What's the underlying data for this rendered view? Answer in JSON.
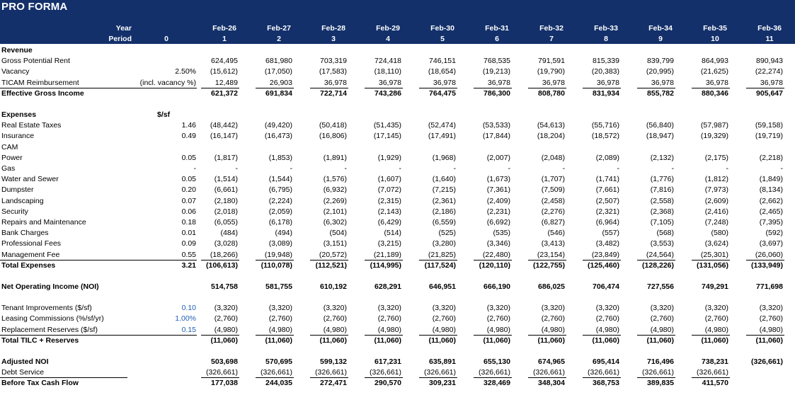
{
  "title": "PRO FORMA",
  "header": {
    "year_label": "Year",
    "period_label": "Period",
    "period0": "0",
    "years": [
      "Feb-26",
      "Feb-27",
      "Feb-28",
      "Feb-29",
      "Feb-30",
      "Feb-31",
      "Feb-32",
      "Feb-33",
      "Feb-34",
      "Feb-35",
      "Feb-36"
    ],
    "periods": [
      "1",
      "2",
      "3",
      "4",
      "5",
      "6",
      "7",
      "8",
      "9",
      "10",
      "11"
    ]
  },
  "rows": [
    {
      "label": "Revenue",
      "bold": true
    },
    {
      "label": "Gross Potential Rent",
      "vals": [
        "624,495",
        "681,980",
        "703,319",
        "724,418",
        "746,151",
        "768,535",
        "791,591",
        "815,339",
        "839,799",
        "864,993",
        "890,943"
      ]
    },
    {
      "label": "Vacancy",
      "a": "2.50%",
      "vals": [
        "(15,612)",
        "(17,050)",
        "(17,583)",
        "(18,110)",
        "(18,654)",
        "(19,213)",
        "(19,790)",
        "(20,383)",
        "(20,995)",
        "(21,625)",
        "(22,274)"
      ]
    },
    {
      "label": "TICAM Reimbursement",
      "a": "(incl. vacancy %)",
      "vals": [
        "12,489",
        "26,903",
        "36,978",
        "36,978",
        "36,978",
        "36,978",
        "36,978",
        "36,978",
        "36,978",
        "36,978",
        "36,978"
      ],
      "uline": true
    },
    {
      "label": "Effective Gross Income",
      "bold": true,
      "vals": [
        "621,372",
        "691,834",
        "722,714",
        "743,286",
        "764,475",
        "786,300",
        "808,780",
        "831,934",
        "855,782",
        "880,346",
        "905,647"
      ]
    },
    {
      "blank": true
    },
    {
      "label": "Expenses",
      "bold": true,
      "b": "$/sf"
    },
    {
      "label": "Real Estate Taxes",
      "a": "1.46",
      "vals": [
        "(48,442)",
        "(49,420)",
        "(50,418)",
        "(51,435)",
        "(52,474)",
        "(53,533)",
        "(54,613)",
        "(55,716)",
        "(56,840)",
        "(57,987)",
        "(59,158)"
      ]
    },
    {
      "label": "Insurance",
      "a": "0.49",
      "vals": [
        "(16,147)",
        "(16,473)",
        "(16,806)",
        "(17,145)",
        "(17,491)",
        "(17,844)",
        "(18,204)",
        "(18,572)",
        "(18,947)",
        "(19,329)",
        "(19,719)"
      ]
    },
    {
      "label": "CAM"
    },
    {
      "label": "Power",
      "a": "0.05",
      "vals": [
        "(1,817)",
        "(1,853)",
        "(1,891)",
        "(1,929)",
        "(1,968)",
        "(2,007)",
        "(2,048)",
        "(2,089)",
        "(2,132)",
        "(2,175)",
        "(2,218)"
      ]
    },
    {
      "label": "Gas",
      "a": "-",
      "vals": [
        "-",
        "-",
        "-",
        "-",
        "-",
        "-",
        "-",
        "-",
        "-",
        "-",
        "-"
      ]
    },
    {
      "label": "Water and Sewer",
      "a": "0.05",
      "vals": [
        "(1,514)",
        "(1,544)",
        "(1,576)",
        "(1,607)",
        "(1,640)",
        "(1,673)",
        "(1,707)",
        "(1,741)",
        "(1,776)",
        "(1,812)",
        "(1,849)"
      ]
    },
    {
      "label": "Dumpster",
      "a": "0.20",
      "vals": [
        "(6,661)",
        "(6,795)",
        "(6,932)",
        "(7,072)",
        "(7,215)",
        "(7,361)",
        "(7,509)",
        "(7,661)",
        "(7,816)",
        "(7,973)",
        "(8,134)"
      ]
    },
    {
      "label": "Landscaping",
      "a": "0.07",
      "vals": [
        "(2,180)",
        "(2,224)",
        "(2,269)",
        "(2,315)",
        "(2,361)",
        "(2,409)",
        "(2,458)",
        "(2,507)",
        "(2,558)",
        "(2,609)",
        "(2,662)"
      ]
    },
    {
      "label": "Security",
      "a": "0.06",
      "vals": [
        "(2,018)",
        "(2,059)",
        "(2,101)",
        "(2,143)",
        "(2,186)",
        "(2,231)",
        "(2,276)",
        "(2,321)",
        "(2,368)",
        "(2,416)",
        "(2,465)"
      ]
    },
    {
      "label": "Repairs and Maintenance",
      "a": "0.18",
      "vals": [
        "(6,055)",
        "(6,178)",
        "(6,302)",
        "(6,429)",
        "(6,559)",
        "(6,692)",
        "(6,827)",
        "(6,964)",
        "(7,105)",
        "(7,248)",
        "(7,395)"
      ]
    },
    {
      "label": "Bank Charges",
      "a": "0.01",
      "vals": [
        "(484)",
        "(494)",
        "(504)",
        "(514)",
        "(525)",
        "(535)",
        "(546)",
        "(557)",
        "(568)",
        "(580)",
        "(592)"
      ]
    },
    {
      "label": "Professional Fees",
      "a": "0.09",
      "vals": [
        "(3,028)",
        "(3,089)",
        "(3,151)",
        "(3,215)",
        "(3,280)",
        "(3,346)",
        "(3,413)",
        "(3,482)",
        "(3,553)",
        "(3,624)",
        "(3,697)"
      ]
    },
    {
      "label": "Management Fee",
      "a": "0.55",
      "vals": [
        "(18,266)",
        "(19,948)",
        "(20,572)",
        "(21,189)",
        "(21,825)",
        "(22,480)",
        "(23,154)",
        "(23,849)",
        "(24,564)",
        "(25,301)",
        "(26,060)"
      ],
      "uline": true
    },
    {
      "label": "Total Expenses",
      "bold": true,
      "a": "3.21",
      "vals": [
        "(106,613)",
        "(110,078)",
        "(112,521)",
        "(114,995)",
        "(117,524)",
        "(120,110)",
        "(122,755)",
        "(125,460)",
        "(128,226)",
        "(131,056)",
        "(133,949)"
      ]
    },
    {
      "blank": true
    },
    {
      "label": "Net Operating Income (NOI)",
      "bold": true,
      "vals": [
        "514,758",
        "581,755",
        "610,192",
        "628,291",
        "646,951",
        "666,190",
        "686,025",
        "706,474",
        "727,556",
        "749,291",
        "771,698"
      ]
    },
    {
      "blank": true
    },
    {
      "label": "Tenant Improvements ($/sf)",
      "a": "0.10",
      "blue": true,
      "vals": [
        "(3,320)",
        "(3,320)",
        "(3,320)",
        "(3,320)",
        "(3,320)",
        "(3,320)",
        "(3,320)",
        "(3,320)",
        "(3,320)",
        "(3,320)",
        "(3,320)"
      ]
    },
    {
      "label": "Leasing Commissions (%/sf/yr)",
      "a": "1.00%",
      "blue": true,
      "vals": [
        "(2,760)",
        "(2,760)",
        "(2,760)",
        "(2,760)",
        "(2,760)",
        "(2,760)",
        "(2,760)",
        "(2,760)",
        "(2,760)",
        "(2,760)",
        "(2,760)"
      ]
    },
    {
      "label": "Replacement Reserves ($/sf)",
      "a": "0.15",
      "blue": true,
      "vals": [
        "(4,980)",
        "(4,980)",
        "(4,980)",
        "(4,980)",
        "(4,980)",
        "(4,980)",
        "(4,980)",
        "(4,980)",
        "(4,980)",
        "(4,980)",
        "(4,980)"
      ],
      "uline": true
    },
    {
      "label": "Total TILC + Reserves",
      "bold": true,
      "vals": [
        "(11,060)",
        "(11,060)",
        "(11,060)",
        "(11,060)",
        "(11,060)",
        "(11,060)",
        "(11,060)",
        "(11,060)",
        "(11,060)",
        "(11,060)",
        "(11,060)"
      ]
    },
    {
      "blank": true
    },
    {
      "label": "Adjusted NOI",
      "bold": true,
      "vals": [
        "503,698",
        "570,695",
        "599,132",
        "617,231",
        "635,891",
        "655,130",
        "674,965",
        "695,414",
        "716,496",
        "738,231",
        "(326,661)"
      ],
      "skip_last": true
    },
    {
      "label": "Debt Service",
      "vals": [
        "(326,661)",
        "(326,661)",
        "(326,661)",
        "(326,661)",
        "(326,661)",
        "(326,661)",
        "(326,661)",
        "(326,661)",
        "(326,661)",
        "(326,661)"
      ],
      "uline": true
    },
    {
      "label": "Before Tax Cash Flow",
      "bold": true,
      "vals": [
        "177,038",
        "244,035",
        "272,471",
        "290,570",
        "309,231",
        "328,469",
        "348,304",
        "368,753",
        "389,835",
        "411,570"
      ]
    }
  ]
}
